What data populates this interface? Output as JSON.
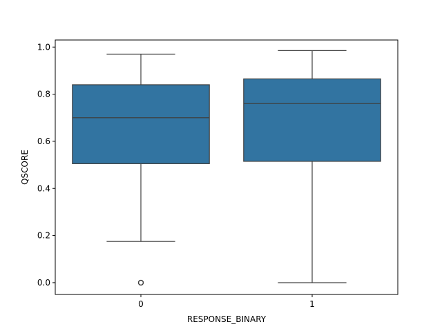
{
  "chart_data": {
    "type": "box",
    "xlabel": "RESPONSE_BINARY",
    "ylabel": "QSCORE",
    "categories": [
      "0",
      "1"
    ],
    "ylim": [
      -0.05,
      1.03
    ],
    "y_ticks": [
      0.0,
      0.2,
      0.4,
      0.6,
      0.8,
      1.0
    ],
    "y_tick_labels": [
      "0.0",
      "0.2",
      "0.4",
      "0.6",
      "0.8",
      "1.0"
    ],
    "grid": false,
    "box_color": "#3274a1",
    "line_color": "#3f3f3f",
    "boxes": [
      {
        "category": "0",
        "whisker_low": 0.175,
        "q1": 0.505,
        "median": 0.7,
        "q3": 0.84,
        "whisker_high": 0.97,
        "outliers": [
          0.0,
          0.0,
          0.0
        ]
      },
      {
        "category": "1",
        "whisker_low": 0.0,
        "q1": 0.515,
        "median": 0.76,
        "q3": 0.865,
        "whisker_high": 0.985,
        "outliers": []
      }
    ]
  }
}
